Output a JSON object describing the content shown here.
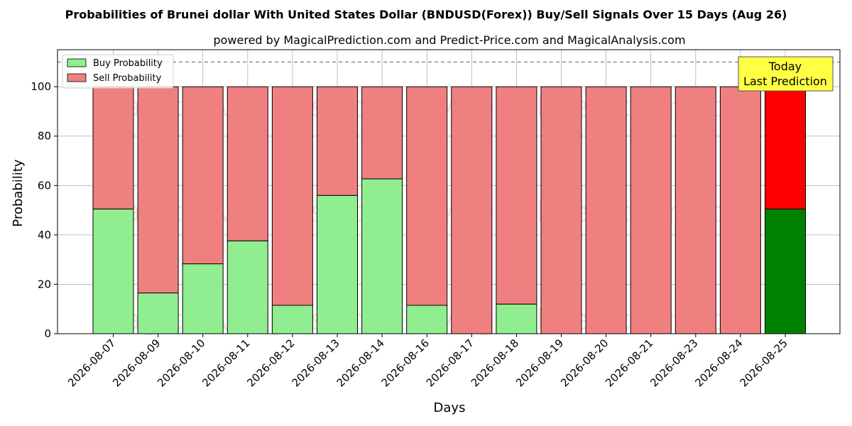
{
  "chart_data": {
    "type": "bar",
    "stacked": true,
    "title": "Probabilities of Brunei dollar With United States Dollar (BNDUSD(Forex)) Buy/Sell Signals Over 15 Days (Aug 26)",
    "subtitle": "powered by MagicalPrediction.com and Predict-Price.com and MagicalAnalysis.com",
    "xlabel": "Days",
    "ylabel": "Probability",
    "ylim": [
      0,
      115
    ],
    "yticks": [
      0,
      20,
      40,
      60,
      80,
      100
    ],
    "grid": true,
    "legend_position": "top-left",
    "reference_line": 110,
    "categories": [
      "2026-08-07",
      "2026-08-09",
      "2026-08-10",
      "2026-08-11",
      "2026-08-12",
      "2026-08-13",
      "2026-08-14",
      "2026-08-16",
      "2026-08-17",
      "2026-08-18",
      "2026-08-19",
      "2026-08-20",
      "2026-08-21",
      "2026-08-23",
      "2026-08-24",
      "2026-08-25"
    ],
    "series": [
      {
        "name": "Buy Probability",
        "color": "#90ee90",
        "highlight_color": "#008000",
        "values": [
          50.5,
          16.5,
          28.3,
          37.6,
          11.5,
          56.0,
          62.7,
          11.5,
          0,
          12.0,
          0,
          0,
          0,
          0,
          0,
          50.5
        ]
      },
      {
        "name": "Sell Probability",
        "color": "#f08080",
        "highlight_color": "#ff0000",
        "values": [
          49.5,
          83.5,
          71.7,
          62.4,
          88.5,
          44.0,
          37.3,
          88.5,
          100,
          88.0,
          100,
          100,
          100,
          100,
          100,
          49.5
        ]
      }
    ],
    "annotation": {
      "lines": [
        "Today",
        "Last Prediction"
      ],
      "color": "#ffff44"
    },
    "watermarks": [
      "MagicalAnalysis.com",
      "MagicalPrediction.com"
    ]
  }
}
